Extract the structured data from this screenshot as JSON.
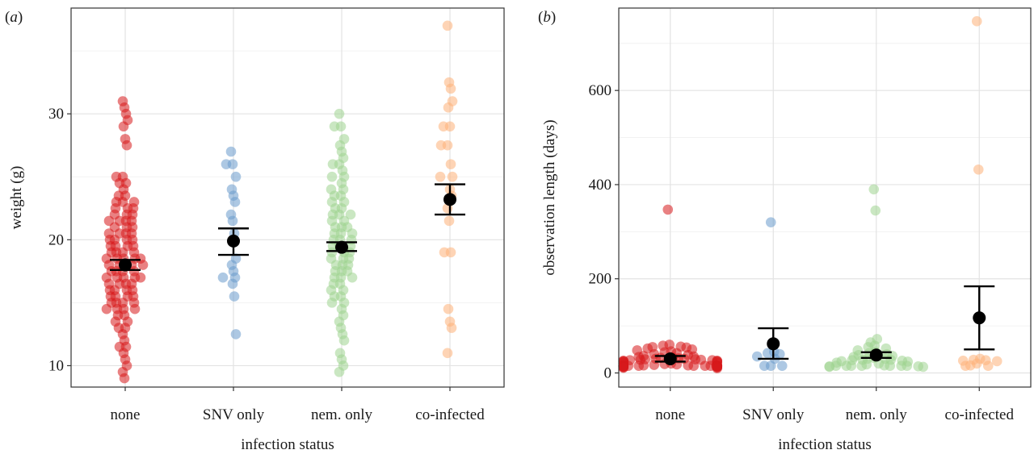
{
  "figure": {
    "panel_letters": [
      "a",
      "b"
    ]
  },
  "colors": {
    "none": "#d7191c",
    "SNV only": "#6a9bcc",
    "nem. only": "#9fd490",
    "co-infected": "#fdb078",
    "mean": "#000000",
    "grid": "#e6e6e6",
    "border": "#333333"
  },
  "chart_data": [
    {
      "panel": "a",
      "type": "scatter",
      "xlabel": "infection status",
      "ylabel": "weight (g)",
      "categories": [
        "none",
        "SNV only",
        "nem. only",
        "co-infected"
      ],
      "ylim": [
        8.3,
        38.4
      ],
      "yticks": [
        10,
        20,
        30
      ],
      "grid": true,
      "series": [
        {
          "category": "none",
          "mean": 18.0,
          "ci": [
            17.6,
            18.4
          ],
          "values": [
            31.0,
            30.5,
            30.0,
            29.5,
            29.0,
            28.0,
            27.5,
            25.0,
            25.0,
            24.5,
            24.5,
            24.0,
            23.5,
            23.5,
            23.0,
            23.0,
            23.0,
            22.5,
            22.5,
            22.5,
            22.0,
            22.0,
            22.0,
            21.5,
            21.5,
            21.5,
            21.5,
            21.0,
            21.0,
            21.0,
            20.5,
            20.5,
            20.5,
            20.5,
            20.0,
            20.0,
            20.0,
            20.0,
            19.5,
            19.5,
            19.5,
            19.5,
            19.0,
            19.0,
            19.0,
            19.0,
            18.5,
            18.5,
            18.5,
            18.5,
            18.5,
            18.0,
            18.0,
            18.0,
            18.0,
            18.0,
            17.5,
            17.5,
            17.5,
            17.5,
            17.0,
            17.0,
            17.0,
            17.0,
            17.0,
            16.5,
            16.5,
            16.5,
            16.5,
            16.0,
            16.0,
            16.0,
            16.0,
            15.5,
            15.5,
            15.5,
            15.5,
            15.0,
            15.0,
            15.0,
            15.0,
            14.5,
            14.5,
            14.5,
            14.5,
            14.0,
            14.0,
            13.5,
            13.5,
            13.0,
            13.0,
            12.5,
            12.0,
            11.5,
            11.5,
            11.0,
            10.5,
            10.0,
            9.5,
            9.0
          ]
        },
        {
          "category": "SNV only",
          "mean": 19.9,
          "ci": [
            18.8,
            20.9
          ],
          "values": [
            27.0,
            26.0,
            26.0,
            25.0,
            24.0,
            23.5,
            23.0,
            22.0,
            21.5,
            20.5,
            18.5,
            18.0,
            17.5,
            17.0,
            17.0,
            16.5,
            15.5,
            12.5
          ]
        },
        {
          "category": "nem. only",
          "mean": 19.4,
          "ci": [
            19.1,
            19.8
          ],
          "values": [
            30.0,
            29.0,
            29.0,
            28.0,
            27.5,
            27.0,
            26.5,
            26.0,
            26.0,
            25.5,
            25.0,
            25.0,
            24.5,
            24.0,
            24.0,
            23.5,
            23.5,
            23.0,
            23.0,
            22.5,
            22.5,
            22.0,
            22.0,
            22.0,
            21.5,
            21.5,
            21.0,
            21.0,
            21.0,
            20.5,
            20.5,
            20.5,
            20.0,
            20.0,
            20.0,
            19.5,
            19.5,
            19.5,
            19.0,
            19.0,
            19.0,
            18.5,
            18.5,
            18.5,
            18.0,
            18.0,
            18.0,
            17.5,
            17.5,
            17.5,
            17.0,
            17.0,
            17.0,
            16.5,
            16.5,
            16.0,
            16.0,
            15.5,
            15.5,
            15.0,
            15.0,
            14.5,
            14.0,
            13.5,
            13.0,
            12.5,
            12.0,
            11.0,
            10.5,
            10.0,
            9.5
          ]
        },
        {
          "category": "co-infected",
          "mean": 23.2,
          "ci": [
            22.0,
            24.4
          ],
          "values": [
            37.0,
            32.5,
            32.0,
            31.0,
            30.5,
            29.0,
            29.0,
            27.5,
            27.5,
            26.0,
            25.0,
            25.0,
            24.0,
            23.5,
            22.5,
            21.5,
            19.0,
            19.0,
            14.5,
            13.5,
            13.0,
            11.0
          ]
        }
      ]
    },
    {
      "panel": "b",
      "type": "scatter",
      "xlabel": "infection status",
      "ylabel": "observation length (days)",
      "categories": [
        "none",
        "SNV only",
        "nem. only",
        "co-infected"
      ],
      "ylim": [
        -30,
        775
      ],
      "yticks": [
        0,
        200,
        400,
        600
      ],
      "grid": true,
      "series": [
        {
          "category": "none",
          "mean": 30,
          "ci": [
            24,
            36
          ],
          "values": [
            347,
            60,
            58,
            56,
            55,
            54,
            52,
            50,
            48,
            46,
            44,
            42,
            40,
            38,
            36,
            35,
            34,
            33,
            32,
            31,
            30,
            30,
            29,
            29,
            28,
            28,
            27,
            27,
            26,
            26,
            25,
            25,
            24,
            24,
            23,
            22,
            21,
            20,
            19,
            18,
            17,
            16,
            16,
            15,
            15,
            15,
            15,
            15,
            15,
            15,
            15,
            15,
            15,
            15,
            15,
            15,
            15,
            15,
            15,
            15,
            14,
            14,
            14,
            14,
            14,
            13,
            13,
            13,
            12,
            12,
            11,
            10
          ]
        },
        {
          "category": "SNV only",
          "mean": 62,
          "ci": [
            30,
            95
          ],
          "values": [
            320,
            60,
            45,
            42,
            40,
            35,
            30,
            15,
            15,
            15
          ]
        },
        {
          "category": "nem. only",
          "mean": 38,
          "ci": [
            32,
            44
          ],
          "values": [
            390,
            345,
            72,
            65,
            58,
            55,
            52,
            48,
            45,
            42,
            40,
            38,
            36,
            34,
            32,
            30,
            30,
            28,
            28,
            27,
            26,
            25,
            24,
            22,
            20,
            18,
            16,
            15,
            15,
            15,
            15,
            15,
            15,
            15,
            14,
            14,
            13,
            13
          ]
        },
        {
          "category": "co-infected",
          "mean": 117,
          "ci": [
            50,
            184
          ],
          "values": [
            747,
            432,
            30,
            28,
            27,
            26,
            25,
            20,
            16,
            15,
            15
          ]
        }
      ]
    }
  ]
}
